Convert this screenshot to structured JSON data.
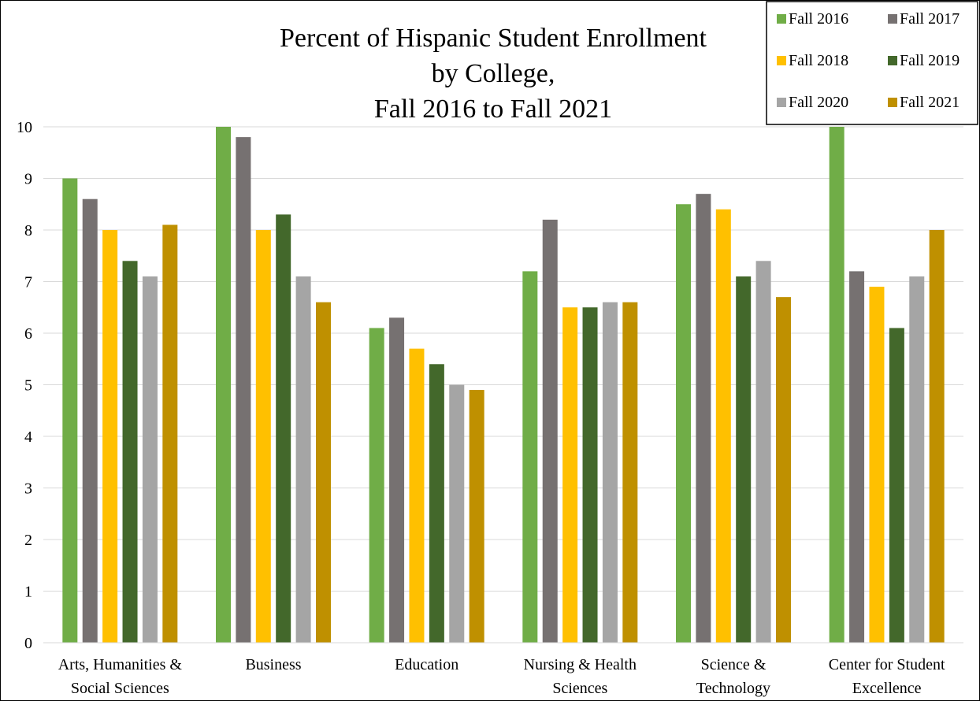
{
  "chart_data": {
    "type": "bar",
    "title_lines": [
      "Percent of Hispanic Student Enrollment",
      "by College,",
      "Fall 2016 to Fall 2021"
    ],
    "xlabel": "",
    "ylabel": "",
    "ylim": [
      0,
      10
    ],
    "yticks": [
      0,
      1,
      2,
      3,
      4,
      5,
      6,
      7,
      8,
      9,
      10
    ],
    "grid": true,
    "legend_position": "top-right",
    "categories": [
      [
        "Arts, Humanities &",
        "Social Sciences"
      ],
      [
        "Business"
      ],
      [
        "Education"
      ],
      [
        "Nursing & Health",
        "Sciences"
      ],
      [
        "Science &",
        "Technology"
      ],
      [
        "Center for Student",
        "Excellence"
      ]
    ],
    "series": [
      {
        "name": "Fall 2016",
        "color": "#70ad47",
        "values": [
          9.0,
          10.0,
          6.1,
          7.2,
          8.5,
          10.0
        ]
      },
      {
        "name": "Fall 2017",
        "color": "#767171",
        "values": [
          8.6,
          9.8,
          6.3,
          8.2,
          8.7,
          7.2
        ]
      },
      {
        "name": "Fall 2018",
        "color": "#ffc000",
        "values": [
          8.0,
          8.0,
          5.7,
          6.5,
          8.4,
          6.9
        ]
      },
      {
        "name": "Fall 2019",
        "color": "#43682b",
        "values": [
          7.4,
          8.3,
          5.4,
          6.5,
          7.1,
          6.1
        ]
      },
      {
        "name": "Fall 2020",
        "color": "#a5a5a5",
        "values": [
          7.1,
          7.1,
          5.0,
          6.6,
          7.4,
          7.1
        ]
      },
      {
        "name": "Fall 2021",
        "color": "#bf9000",
        "values": [
          8.1,
          6.6,
          4.9,
          6.6,
          6.7,
          8.0
        ]
      }
    ]
  }
}
